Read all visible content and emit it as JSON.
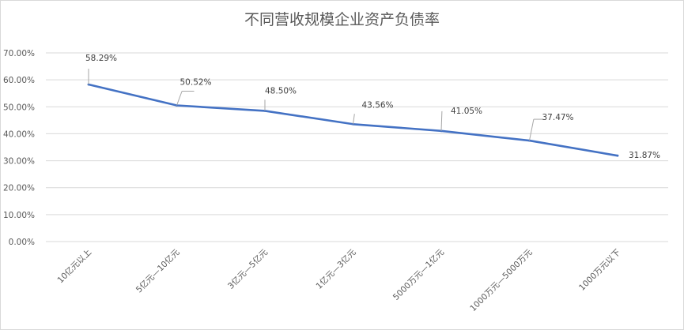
{
  "chart_data": {
    "type": "line",
    "title": "不同营收规模企业资产负债率",
    "xlabel": "",
    "ylabel": "",
    "categories": [
      "10亿元以上",
      "5亿元—10亿元",
      "3亿元—5亿元",
      "1亿元—3亿元",
      "5000万元—1亿元",
      "1000万元—5000万元",
      "1000万元以下"
    ],
    "series": [
      {
        "values": [
          58.29,
          50.52,
          48.5,
          43.56,
          41.05,
          37.47,
          31.87
        ],
        "labels": [
          "58.29%",
          "50.52%",
          "48.50%",
          "43.56%",
          "41.05%",
          "37.47%",
          "31.87%"
        ]
      }
    ],
    "ylim": [
      0,
      70
    ],
    "yticks": [
      "0.00%",
      "10.00%",
      "20.00%",
      "30.00%",
      "40.00%",
      "50.00%",
      "60.00%",
      "70.00%"
    ],
    "grid": true,
    "colors": {
      "line": "#4472c4",
      "grid": "#d9d9d9",
      "leader": "#a6a6a6"
    }
  }
}
